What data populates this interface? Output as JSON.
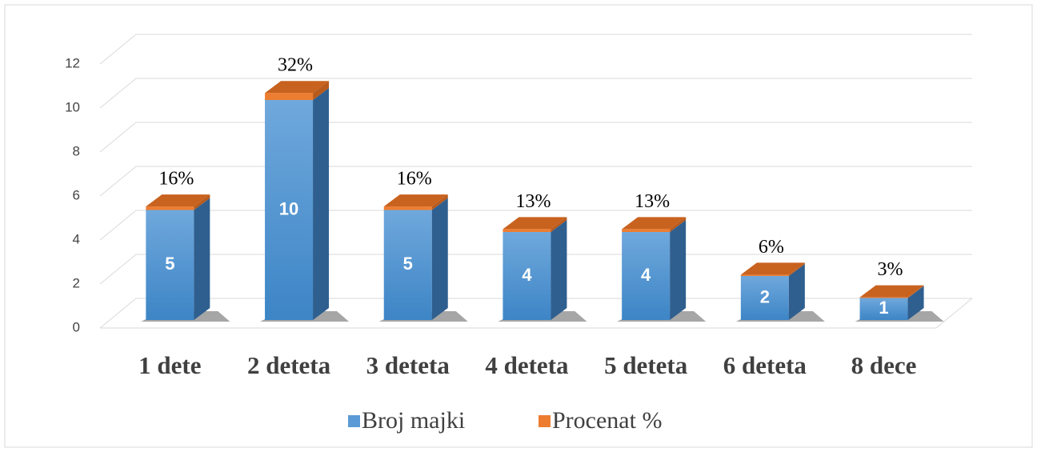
{
  "chart_data": {
    "type": "bar3d_stacked",
    "categories": [
      "1 dete",
      "2 deteta",
      "3 deteta",
      "4 deteta",
      "5 deteta",
      "6 deteta",
      "8 dece"
    ],
    "series": [
      {
        "name": "Broj majki",
        "color": "#5b9bd5",
        "values": [
          5,
          10,
          5,
          4,
          4,
          2,
          1
        ]
      },
      {
        "name": "Procenat %",
        "color": "#ed7d31",
        "values": [
          0.16,
          0.32,
          0.16,
          0.13,
          0.13,
          0.06,
          0.03
        ],
        "value_labels": [
          "16%",
          "32%",
          "16%",
          "13%",
          "13%",
          "6%",
          "3%"
        ]
      }
    ],
    "ylim": [
      0,
      12
    ],
    "yticks": [
      0,
      2,
      4,
      6,
      8,
      10,
      12
    ],
    "grid": true,
    "legend": "bottom"
  }
}
